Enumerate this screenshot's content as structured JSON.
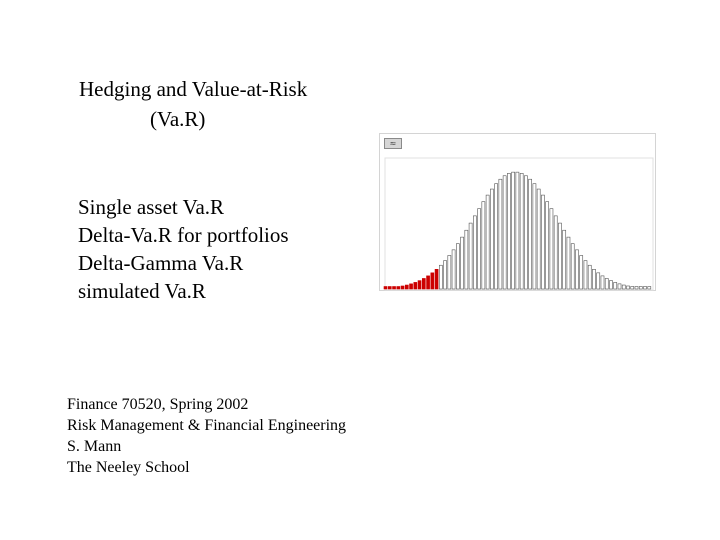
{
  "title": {
    "line1": "Hedging and Value-at-Risk",
    "line2": "(Va.R)"
  },
  "topics": [
    "Single asset Va.R",
    "Delta-Va.R for portfolios",
    "Delta-Gamma Va.R",
    "simulated Va.R"
  ],
  "footer": [
    "Finance 70520, Spring 2002",
    "Risk Management & Financial Engineering",
    "S. Mann",
    "The Neeley School"
  ],
  "chart_data": {
    "type": "bar",
    "distribution": "normal",
    "bin_count": 63,
    "peak_bin": 30.5,
    "spread_bins": 9.8,
    "tail_bins": 13,
    "tail_color": "#cc0000",
    "bar_color": "#ffffff",
    "bar_outline": "#555555",
    "grid": false
  }
}
